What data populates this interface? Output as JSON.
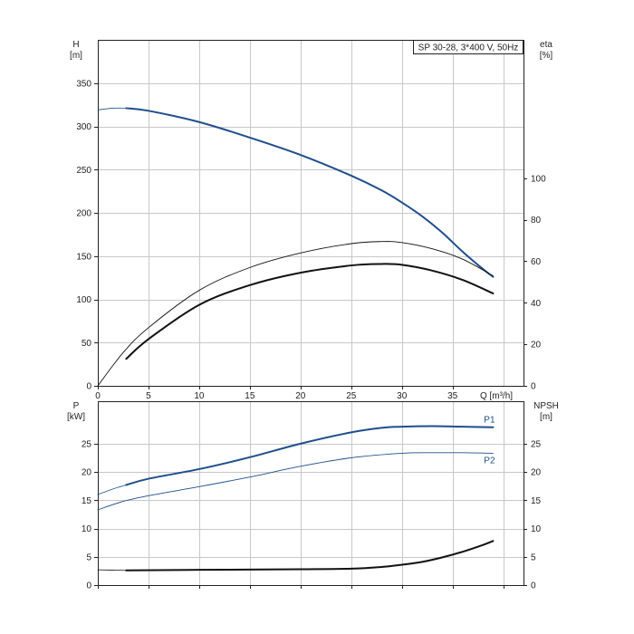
{
  "chart_data": [
    {
      "type": "line",
      "panel": "top",
      "legend": "SP 30-28, 3*400 V, 50Hz",
      "ylabel_left": [
        "H",
        "[m]"
      ],
      "ylabel_right": [
        "eta",
        "[%]"
      ],
      "xlabel": "Q [m³/h]",
      "xlim": [
        0,
        42
      ],
      "ylim_left": [
        0,
        400
      ],
      "ylim_right": [
        0,
        166.6667
      ],
      "x_ticks": [
        0,
        5,
        10,
        15,
        20,
        25,
        30,
        35
      ],
      "y_ticks_left": [
        0,
        50,
        100,
        150,
        200,
        250,
        300,
        350
      ],
      "y_ticks_right": [
        0,
        20,
        40,
        60,
        80,
        100
      ],
      "grid": true,
      "series": [
        {
          "key": "head_ext",
          "axis": "left",
          "color": "#1f4e8c",
          "width": 0.8,
          "x": [
            0,
            1.5,
            2.8
          ],
          "y": [
            319,
            321,
            321
          ]
        },
        {
          "key": "head",
          "axis": "left",
          "color": "#1f4e8c",
          "width": 2,
          "x": [
            2.8,
            5,
            10,
            15,
            20,
            25,
            28,
            30,
            32,
            34,
            36,
            38,
            39
          ],
          "y": [
            321,
            318,
            305,
            287,
            267,
            243,
            226,
            212,
            196,
            177,
            155,
            135,
            126
          ]
        },
        {
          "key": "eta_pump",
          "axis": "right",
          "color": "#111111",
          "width": 0.9,
          "x": [
            0,
            2.5,
            5,
            10,
            15,
            20,
            25,
            28,
            30,
            33,
            36,
            39
          ],
          "y": [
            0,
            16,
            28,
            46,
            57,
            64,
            68.5,
            69.5,
            69,
            66,
            61,
            53
          ]
        },
        {
          "key": "eta_total",
          "axis": "right",
          "color": "#111111",
          "width": 2,
          "x": [
            2.8,
            5,
            10,
            15,
            20,
            25,
            28,
            30,
            33,
            36,
            39
          ],
          "y": [
            13,
            22.5,
            39,
            48.5,
            54.5,
            58,
            58.7,
            58.3,
            55.5,
            51,
            44.5
          ]
        }
      ]
    },
    {
      "type": "line",
      "panel": "bottom",
      "ylabel_left": [
        "P",
        "[kW]"
      ],
      "ylabel_right": [
        "NPSH",
        "[m]"
      ],
      "xlim": [
        0,
        42
      ],
      "ylim_left": [
        0,
        32.5
      ],
      "ylim_right": [
        0,
        32.5
      ],
      "y_ticks_left": [
        0,
        5,
        10,
        15,
        20,
        25
      ],
      "y_ticks_right": [
        0,
        5,
        10,
        15,
        20,
        25
      ],
      "grid": true,
      "series": [
        {
          "key": "p1_ext",
          "axis": "left",
          "color": "#1f4e8c",
          "width": 0.8,
          "x": [
            0,
            1.5,
            2.8
          ],
          "y": [
            16,
            17,
            17.7
          ]
        },
        {
          "key": "p1",
          "name": "P1",
          "axis": "left",
          "color": "#1f4e8c",
          "width": 2,
          "x": [
            2.8,
            5,
            10,
            15,
            20,
            25,
            28,
            30,
            33,
            36,
            39
          ],
          "y": [
            17.7,
            18.8,
            20.5,
            22.6,
            25,
            27,
            27.8,
            28,
            28.1,
            28,
            27.9
          ]
        },
        {
          "key": "p2",
          "name": "P2",
          "axis": "left",
          "color": "#1f4e8c",
          "width": 0.9,
          "x": [
            0,
            2.5,
            5,
            10,
            15,
            20,
            25,
            30,
            33,
            36,
            39
          ],
          "y": [
            13.3,
            14.8,
            15.8,
            17.4,
            19.1,
            21,
            22.5,
            23.3,
            23.4,
            23.4,
            23.3
          ]
        },
        {
          "key": "npsh_ext",
          "axis": "right",
          "color": "#111111",
          "width": 0.8,
          "x": [
            0,
            2.8
          ],
          "y": [
            2.7,
            2.6
          ]
        },
        {
          "key": "npsh",
          "axis": "right",
          "color": "#111111",
          "width": 2,
          "x": [
            2.8,
            10,
            20,
            25,
            28,
            30,
            32,
            34,
            36,
            38,
            39
          ],
          "y": [
            2.6,
            2.7,
            2.8,
            2.9,
            3.2,
            3.6,
            4.1,
            4.9,
            5.9,
            7.1,
            7.8
          ]
        }
      ]
    }
  ]
}
